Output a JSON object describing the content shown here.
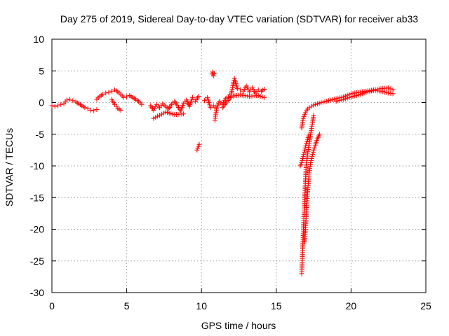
{
  "chart_data": {
    "type": "scatter",
    "title": "Day 275 of 2019, Sidereal Day-to-day VTEC variation (SDTVAR) for receiver ab33",
    "xlabel": "GPS time / hours",
    "ylabel": "SDTVAR / TECUs",
    "xlim": [
      0,
      25
    ],
    "ylim": [
      -30,
      10
    ],
    "xticks": [
      0,
      5,
      10,
      15,
      20,
      25
    ],
    "yticks": [
      10,
      5,
      0,
      -5,
      -10,
      -15,
      -20,
      -25,
      -30
    ],
    "grid": true,
    "marker": "+",
    "series_color": "#ff0000",
    "series": [
      {
        "name": "SDTVAR",
        "segments": [
          {
            "x": [
              0.0,
              0.2,
              0.4,
              0.6,
              0.8,
              1.0,
              1.2,
              1.4,
              1.6,
              1.8,
              2.0,
              2.2,
              2.4,
              2.6,
              2.8,
              3.0
            ],
            "y": [
              -0.5,
              -0.6,
              -0.5,
              -0.3,
              -0.2,
              0.4,
              0.5,
              0.3,
              0.1,
              -0.2,
              -0.5,
              -0.8,
              -1.0,
              -1.2,
              -1.3,
              -1.1
            ]
          },
          {
            "x": [
              3.0,
              3.2,
              3.4,
              3.6,
              3.8,
              4.0,
              4.2,
              4.4,
              4.6,
              4.8,
              5.0,
              5.2,
              5.4,
              5.6,
              5.8,
              6.0
            ],
            "y": [
              0.5,
              1.0,
              1.3,
              1.5,
              1.6,
              1.8,
              2.0,
              1.7,
              1.3,
              0.8,
              0.9,
              1.1,
              0.8,
              0.5,
              0.2,
              -0.3
            ]
          },
          {
            "x": [
              4.0,
              4.2,
              4.4,
              4.6
            ],
            "y": [
              0.5,
              -0.3,
              -0.9,
              -1.2
            ]
          },
          {
            "x": [
              6.6,
              6.8,
              7.0,
              7.2,
              7.4,
              7.6,
              7.8,
              8.0,
              8.2,
              8.4,
              8.6,
              8.8,
              9.0,
              9.2,
              9.4,
              9.6,
              9.8
            ],
            "y": [
              -0.5,
              -1.2,
              -0.3,
              -0.8,
              -0.2,
              -0.6,
              -1.0,
              -0.3,
              0.2,
              -0.5,
              -1.3,
              -0.2,
              0.4,
              -0.6,
              0.8,
              0.2,
              1.0
            ]
          },
          {
            "x": [
              6.8,
              7.2,
              7.6,
              8.2,
              8.8
            ],
            "y": [
              -2.5,
              -2.0,
              -1.5,
              -1.9,
              -1.8
            ]
          },
          {
            "x": [
              9.7,
              9.75,
              9.8,
              9.85
            ],
            "y": [
              -7.5,
              -7.2,
              -6.9,
              -6.6
            ]
          },
          {
            "x": [
              10.2,
              10.4,
              10.6
            ],
            "y": [
              0.3,
              0.8,
              -0.8
            ]
          },
          {
            "x": [
              10.7,
              10.75,
              10.8,
              10.85
            ],
            "y": [
              4.5,
              4.8,
              4.2,
              4.6
            ]
          },
          {
            "x": [
              10.9,
              11.0
            ],
            "y": [
              -2.8,
              -1.2
            ]
          },
          {
            "x": [
              10.8,
              11.0,
              11.2,
              11.4,
              11.6,
              11.8,
              12.0,
              12.2,
              12.4,
              12.6,
              12.8,
              13.0,
              13.2,
              13.4,
              13.6,
              13.8,
              14.0,
              14.2
            ],
            "y": [
              -0.5,
              -1.0,
              0.2,
              -0.3,
              0.6,
              0.9,
              1.5,
              3.8,
              2.2,
              2.0,
              1.8,
              2.6,
              1.7,
              2.3,
              1.5,
              2.0,
              1.8,
              2.1
            ]
          },
          {
            "x": [
              11.4,
              12.0,
              12.6,
              13.2,
              13.8,
              14.2
            ],
            "y": [
              -0.8,
              1.0,
              1.2,
              1.0,
              1.1,
              0.8
            ]
          },
          {
            "x": [
              16.7,
              16.75,
              16.8,
              16.85,
              16.9,
              17.0,
              17.1,
              17.2,
              17.3,
              17.4,
              17.5
            ],
            "y": [
              -27.0,
              -24.0,
              -21.0,
              -18.0,
              -15.0,
              -10.0,
              -8.0,
              -6.5,
              -5.0,
              -3.5,
              -2.0
            ]
          },
          {
            "x": [
              16.9,
              16.95,
              17.0,
              17.05,
              17.1,
              17.2,
              17.3,
              17.4,
              17.5,
              17.6,
              17.7,
              17.8,
              17.9
            ],
            "y": [
              -22.0,
              -20.0,
              -18.0,
              -16.0,
              -14.0,
              -11.0,
              -9.5,
              -8.5,
              -7.5,
              -6.8,
              -6.0,
              -5.5,
              -5.0
            ]
          },
          {
            "x": [
              16.6,
              16.7,
              16.8,
              16.9,
              17.0,
              17.1,
              17.2
            ],
            "y": [
              -10.0,
              -9.5,
              -8.5,
              -7.5,
              -6.5,
              -5.8,
              -5.0
            ]
          },
          {
            "x": [
              16.7,
              16.8,
              17.0,
              17.2,
              17.5,
              18.0,
              18.5,
              19.0,
              19.5,
              20.0,
              20.5,
              21.0,
              21.5,
              22.0,
              22.5,
              22.8
            ],
            "y": [
              -4.0,
              -2.5,
              -1.3,
              -0.8,
              -0.4,
              0.0,
              0.3,
              0.6,
              0.9,
              1.4,
              1.6,
              1.8,
              2.0,
              2.2,
              2.3,
              2.0
            ]
          },
          {
            "x": [
              19.0,
              19.5,
              20.0,
              20.5,
              21.0,
              21.5,
              22.0,
              22.5,
              22.8
            ],
            "y": [
              0.2,
              0.5,
              0.9,
              1.2,
              1.6,
              1.9,
              1.8,
              1.5,
              1.4
            ]
          }
        ]
      }
    ]
  }
}
